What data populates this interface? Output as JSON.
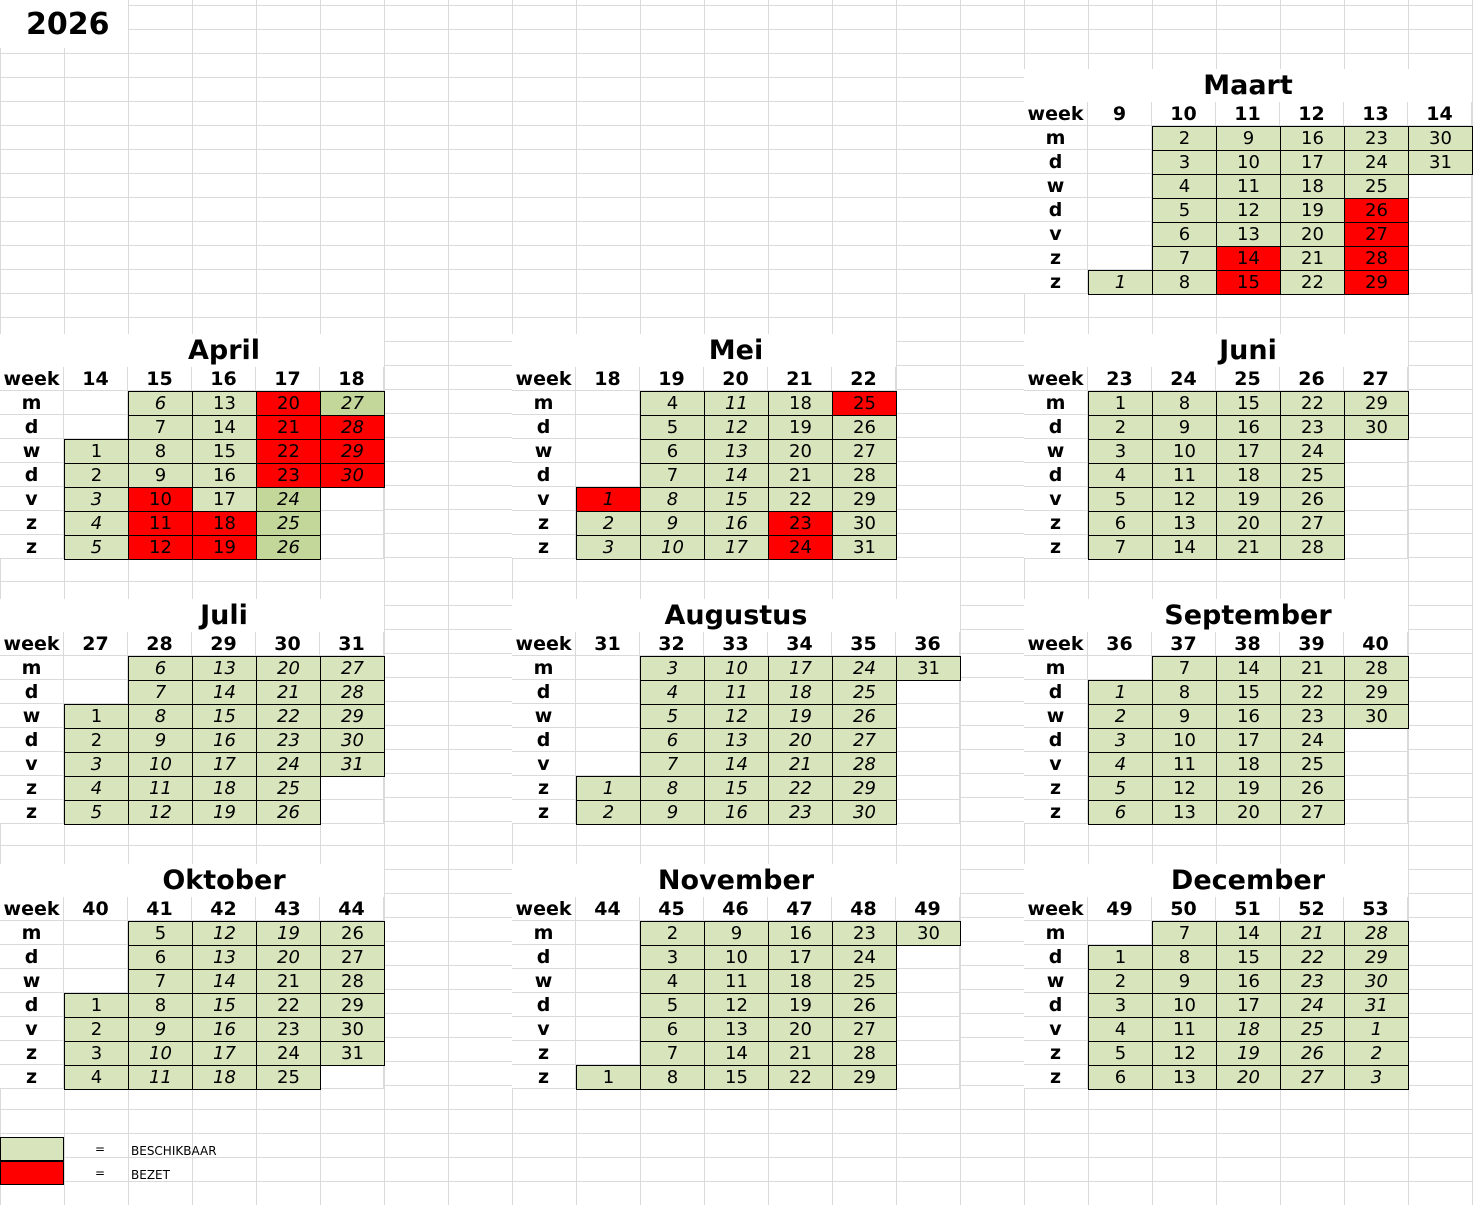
{
  "year": "2026",
  "day_labels": [
    "m",
    "d",
    "w",
    "d",
    "v",
    "z",
    "z"
  ],
  "week_label": "week",
  "colors": {
    "available": "#d8e4bc",
    "available_alt": "#c4d79b",
    "occupied": "#ff0000"
  },
  "cell_code_legend": {
    "i": "italic",
    "r": "occupied (red)",
    "g": "darker green"
  },
  "months": [
    {
      "name": "Maart",
      "weeks": [
        "9",
        "10",
        "11",
        "12",
        "13",
        "14"
      ],
      "days": [
        [
          "",
          "",
          "",
          "",
          "",
          "",
          "1i"
        ],
        [
          "2",
          "3",
          "4",
          "5",
          "6",
          "7",
          "8"
        ],
        [
          "9",
          "10",
          "11",
          "12",
          "13",
          "14r",
          "15r"
        ],
        [
          "16",
          "17",
          "18",
          "19",
          "20",
          "21",
          "22"
        ],
        [
          "23",
          "24",
          "25",
          "26r",
          "27r",
          "28r",
          "29r"
        ],
        [
          "30",
          "31",
          "",
          "",
          "",
          "",
          ""
        ]
      ]
    },
    {
      "name": "April",
      "weeks": [
        "14",
        "15",
        "16",
        "17",
        "18"
      ],
      "days": [
        [
          "",
          "",
          "1",
          "2",
          "3i",
          "4i",
          "5i"
        ],
        [
          "6i",
          "7",
          "8",
          "9",
          "10r",
          "11r",
          "12r"
        ],
        [
          "13",
          "14",
          "15",
          "16",
          "17",
          "18r",
          "19r"
        ],
        [
          "20r",
          "21r",
          "22r",
          "23r",
          "24ig",
          "25ig",
          "26ig"
        ],
        [
          "27ig",
          "28ir",
          "29ir",
          "30ir",
          "",
          "",
          ""
        ]
      ]
    },
    {
      "name": "Mei",
      "weeks": [
        "18",
        "19",
        "20",
        "21",
        "22"
      ],
      "days": [
        [
          "",
          "",
          "",
          "",
          "1ir",
          "2i",
          "3i"
        ],
        [
          "4",
          "5",
          "6",
          "7",
          "8i",
          "9i",
          "10i"
        ],
        [
          "11i",
          "12i",
          "13i",
          "14i",
          "15i",
          "16i",
          "17i"
        ],
        [
          "18",
          "19",
          "20",
          "21",
          "22",
          "23r",
          "24r"
        ],
        [
          "25r",
          "26",
          "27",
          "28",
          "29",
          "30",
          "31"
        ]
      ]
    },
    {
      "name": "Juni",
      "weeks": [
        "23",
        "24",
        "25",
        "26",
        "27"
      ],
      "days": [
        [
          "1",
          "2",
          "3",
          "4",
          "5",
          "6",
          "7"
        ],
        [
          "8",
          "9",
          "10",
          "11",
          "12",
          "13",
          "14"
        ],
        [
          "15",
          "16",
          "17",
          "18",
          "19",
          "20",
          "21"
        ],
        [
          "22",
          "23",
          "24",
          "25",
          "26",
          "27",
          "28"
        ],
        [
          "29",
          "30",
          "",
          "",
          "",
          "",
          ""
        ]
      ]
    },
    {
      "name": "Juli",
      "weeks": [
        "27",
        "28",
        "29",
        "30",
        "31"
      ],
      "days": [
        [
          "",
          "",
          "1",
          "2",
          "3i",
          "4i",
          "5i"
        ],
        [
          "6i",
          "7i",
          "8i",
          "9i",
          "10i",
          "11i",
          "12i"
        ],
        [
          "13i",
          "14i",
          "15i",
          "16i",
          "17i",
          "18i",
          "19i"
        ],
        [
          "20i",
          "21i",
          "22i",
          "23i",
          "24i",
          "25i",
          "26i"
        ],
        [
          "27i",
          "28i",
          "29i",
          "30i",
          "31i",
          "",
          ""
        ]
      ]
    },
    {
      "name": "Augustus",
      "weeks": [
        "31",
        "32",
        "33",
        "34",
        "35",
        "36"
      ],
      "days": [
        [
          "",
          "",
          "",
          "",
          "",
          "1i",
          "2i"
        ],
        [
          "3i",
          "4i",
          "5i",
          "6i",
          "7i",
          "8i",
          "9i"
        ],
        [
          "10i",
          "11i",
          "12i",
          "13i",
          "14i",
          "15i",
          "16i"
        ],
        [
          "17i",
          "18i",
          "19i",
          "20i",
          "21i",
          "22i",
          "23i"
        ],
        [
          "24i",
          "25i",
          "26i",
          "27i",
          "28i",
          "29i",
          "30i"
        ],
        [
          "31",
          "",
          "",
          "",
          "",
          "",
          ""
        ]
      ]
    },
    {
      "name": "September",
      "weeks": [
        "36",
        "37",
        "38",
        "39",
        "40"
      ],
      "days": [
        [
          "",
          "1i",
          "2i",
          "3i",
          "4i",
          "5i",
          "6i"
        ],
        [
          "7",
          "8",
          "9",
          "10",
          "11",
          "12",
          "13"
        ],
        [
          "14",
          "15",
          "16",
          "17",
          "18",
          "19",
          "20"
        ],
        [
          "21",
          "22",
          "23",
          "24",
          "25",
          "26",
          "27"
        ],
        [
          "28",
          "29",
          "30",
          "",
          "",
          "",
          ""
        ]
      ]
    },
    {
      "name": "Oktober",
      "weeks": [
        "40",
        "41",
        "42",
        "43",
        "44"
      ],
      "days": [
        [
          "",
          "",
          "",
          "1",
          "2",
          "3",
          "4"
        ],
        [
          "5",
          "6",
          "7",
          "8",
          "9i",
          "10i",
          "11i"
        ],
        [
          "12i",
          "13i",
          "14i",
          "15i",
          "16i",
          "17i",
          "18i"
        ],
        [
          "19i",
          "20i",
          "21",
          "22",
          "23",
          "24",
          "25"
        ],
        [
          "26",
          "27",
          "28",
          "29",
          "30",
          "31",
          ""
        ]
      ]
    },
    {
      "name": "November",
      "weeks": [
        "44",
        "45",
        "46",
        "47",
        "48",
        "49"
      ],
      "days": [
        [
          "",
          "",
          "",
          "",
          "",
          "",
          "1"
        ],
        [
          "2",
          "3",
          "4",
          "5",
          "6",
          "7",
          "8"
        ],
        [
          "9",
          "10",
          "11",
          "12",
          "13",
          "14",
          "15"
        ],
        [
          "16",
          "17",
          "18",
          "19",
          "20",
          "21",
          "22"
        ],
        [
          "23",
          "24",
          "25",
          "26",
          "27",
          "28",
          "29"
        ],
        [
          "30",
          "",
          "",
          "",
          "",
          "",
          ""
        ]
      ]
    },
    {
      "name": "December",
      "weeks": [
        "49",
        "50",
        "51",
        "52",
        "53"
      ],
      "days": [
        [
          "",
          "1",
          "2",
          "3",
          "4",
          "5",
          "6"
        ],
        [
          "7",
          "8",
          "9",
          "10",
          "11",
          "12",
          "13"
        ],
        [
          "14",
          "15",
          "16",
          "17",
          "18i",
          "19i",
          "20i"
        ],
        [
          "21i",
          "22i",
          "23i",
          "24i",
          "25i",
          "26i",
          "27i"
        ],
        [
          "28i",
          "29i",
          "30i",
          "31i",
          "1i",
          "2i",
          "3i"
        ]
      ]
    }
  ],
  "legend": {
    "equals": "=",
    "available": "BESCHIKBAAR",
    "occupied": "BEZET"
  }
}
